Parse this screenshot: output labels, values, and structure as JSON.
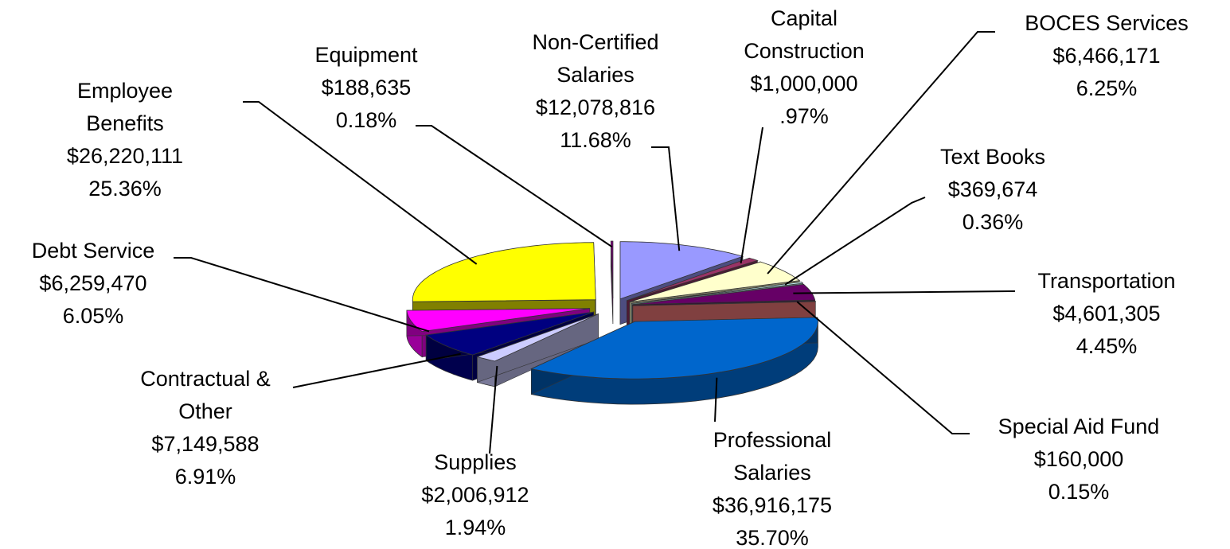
{
  "chart_data": {
    "type": "pie",
    "categories": [
      "Non-Certified Salaries",
      "Capital Construction",
      "BOCES Services",
      "Text Books",
      "Transportation",
      "Special Aid Fund",
      "Professional Salaries",
      "Supplies",
      "Contractual & Other",
      "Debt Service",
      "Employee Benefits",
      "Equipment"
    ],
    "values": [
      11.68,
      0.97,
      6.25,
      0.36,
      4.45,
      0.15,
      35.7,
      1.94,
      6.91,
      6.05,
      25.36,
      0.18
    ],
    "value_labels": [
      "11.68%",
      ".97%",
      "6.25%",
      "0.36%",
      "4.45%",
      "0.15%",
      "35.70%",
      "1.94%",
      "6.91%",
      "6.05%",
      "25.36%",
      "0.18%"
    ],
    "amounts": [
      12078816,
      1000000,
      6466171,
      369674,
      4601305,
      160000,
      36916175,
      2006912,
      7149588,
      6259470,
      26220111,
      188635
    ],
    "amount_labels": [
      "$12,078,816",
      "$1,000,000",
      "$6,466,171",
      "$369,674",
      "$4,601,305",
      "$160,000",
      "$36,916,175",
      "$2,006,912",
      "$7,149,588",
      "$6,259,470",
      "$26,220,111",
      "$188,635"
    ],
    "colors": [
      "#9999ff",
      "#993366",
      "#ffffcc",
      "#ccffff",
      "#660066",
      "#ff8080",
      "#0066cc",
      "#ccccff",
      "#000080",
      "#ff00ff",
      "#ffff00",
      "#800080"
    ]
  }
}
